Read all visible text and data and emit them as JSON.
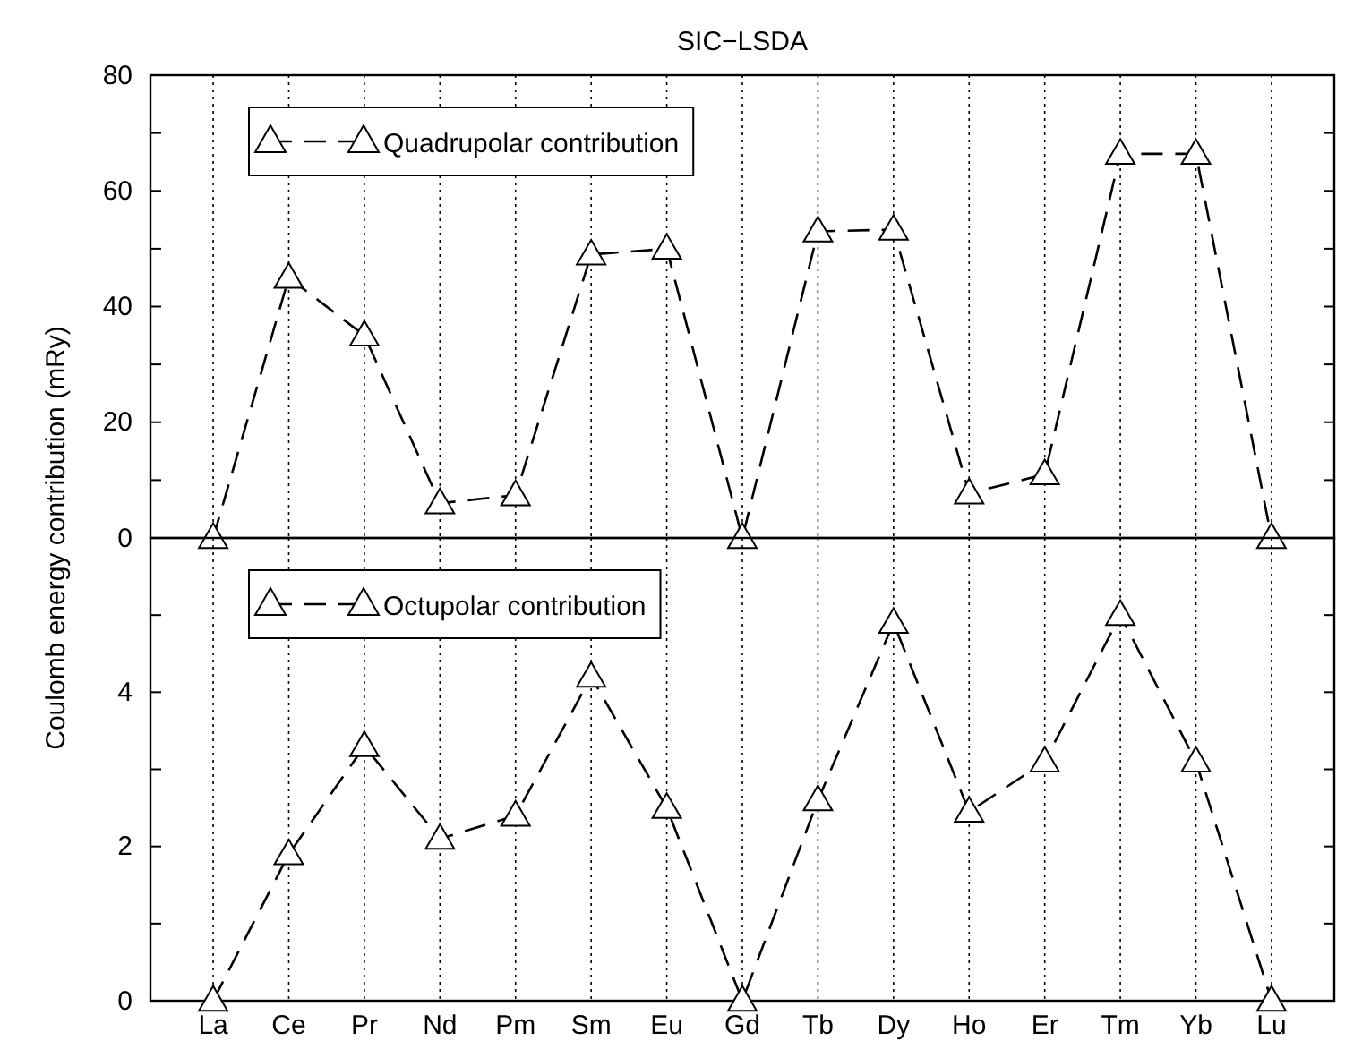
{
  "chart_data": [
    {
      "type": "line",
      "title": "SIC−LSDA",
      "ylabel": "Coulomb energy contribution (mRy)",
      "categories": [
        null,
        null,
        null,
        null,
        null,
        null,
        null,
        null,
        null,
        null,
        null,
        null,
        null,
        null,
        null
      ],
      "series": [
        {
          "name": "Quadrupolar contribution",
          "color": "#000000",
          "values": [
            0,
            45,
            35,
            6,
            7.4,
            49,
            50,
            0,
            53,
            53.3,
            7.7,
            11,
            66.4,
            66.4,
            0
          ]
        }
      ],
      "ylim": [
        0,
        80
      ],
      "yticks": [
        0,
        {
          "value": 10,
          "label": null
        },
        20,
        {
          "value": 30,
          "label": null
        },
        40,
        {
          "value": 50,
          "label": null
        },
        60,
        {
          "value": 70,
          "label": null
        },
        80
      ],
      "tick_labels": "y",
      "grid": "x",
      "legend": "top left",
      "marker": "triangle",
      "line_style": "dashed"
    },
    {
      "type": "line",
      "categories": [
        "La",
        "Ce",
        "Pr",
        "Nd",
        "Pm",
        "Sm",
        "Eu",
        "Gd",
        "Tb",
        "Dy",
        "Ho",
        "Er",
        "Tm",
        "Yb",
        "Lu"
      ],
      "series": [
        {
          "name": "Octupolar contribution",
          "color": "#000000",
          "values": [
            0,
            1.9,
            3.3,
            2.1,
            2.4,
            4.2,
            2.5,
            0,
            2.6,
            4.9,
            2.45,
            3.1,
            5.0,
            3.1,
            0
          ]
        }
      ],
      "ylim": [
        0,
        6
      ],
      "yticks": [
        0,
        {
          "value": 1,
          "label": null
        },
        2,
        {
          "value": 3,
          "label": null
        },
        4,
        {
          "value": 5,
          "label": null
        },
        {
          "value": 6,
          "label": null
        }
      ],
      "grid": "x",
      "legend": "top left",
      "marker": "triangle",
      "line_style": "dashed"
    }
  ]
}
